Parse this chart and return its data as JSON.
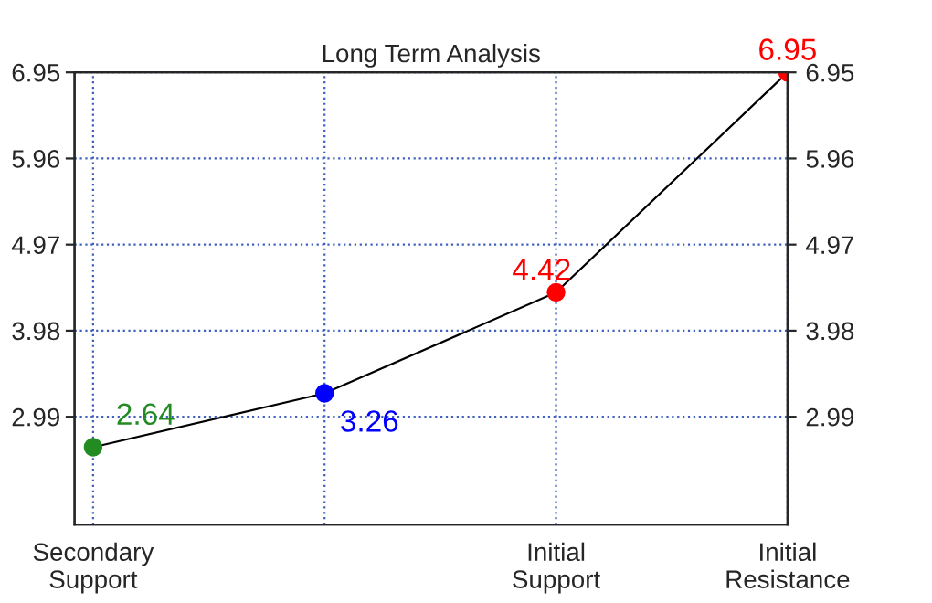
{
  "chart_data": {
    "type": "line",
    "title": "Long Term Analysis",
    "categories": [
      "Secondary\nSupport",
      null,
      "Initial\nSupport",
      "Initial\nResistance"
    ],
    "series": [
      {
        "color": "#000000",
        "colors": [
          "#228b22",
          "#0000ff",
          "#ff0000",
          "#ff0000"
        ],
        "values": [
          2.64,
          3.26,
          4.42,
          6.95
        ]
      }
    ],
    "ylim": [
      1.75,
      6.95
    ],
    "yticks": [
      2.99,
      3.98,
      4.97,
      5.96,
      6.95
    ],
    "y2lim": [
      1.75,
      6.95
    ],
    "y2ticks": [
      2.99,
      3.98,
      4.97,
      5.96,
      6.95
    ],
    "grid": true,
    "marker": "circle",
    "line_style": "solid",
    "data_labels": true
  }
}
